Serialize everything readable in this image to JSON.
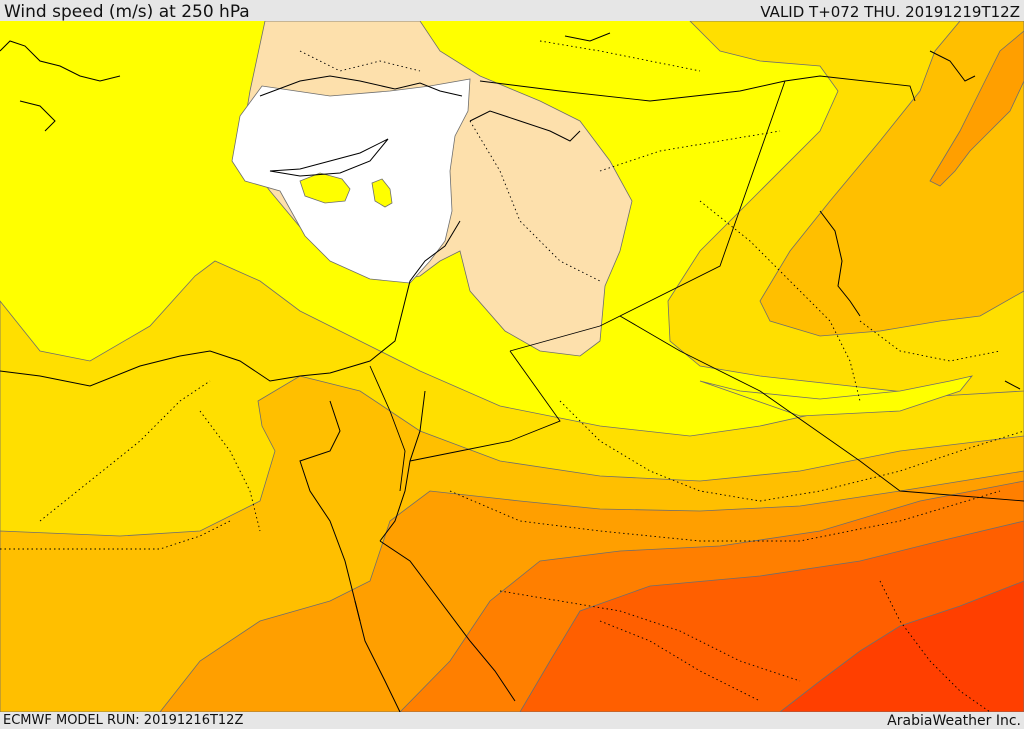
{
  "header": {
    "title": "Wind speed (m/s) at 250 hPa",
    "valid": "VALID T+072 THU. 20191219T12Z"
  },
  "footer": {
    "model_run": "ECMWF MODEL RUN: 20191216T12Z",
    "credit": "ArabiaWeather Inc."
  },
  "colors": {
    "band_white": "#ffffff",
    "band_peach": "#fde0ac",
    "band_yellow": "#ffff00",
    "band_gold": "#ffdf00",
    "band_amber": "#ffbf00",
    "band_orange": "#ff9f00",
    "band_dark_orange": "#ff7f00",
    "band_red_orange": "#ff5f00",
    "band_red": "#ff3f00",
    "coastline": "#000000",
    "border": "#000000"
  }
}
